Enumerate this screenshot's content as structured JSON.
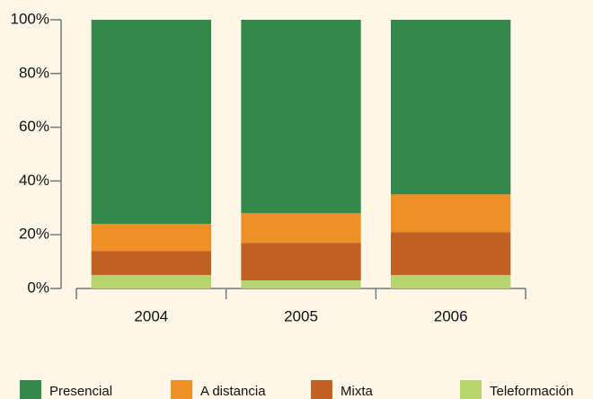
{
  "chart_data": {
    "type": "stacked_bar",
    "categories": [
      "2004",
      "2005",
      "2006"
    ],
    "series": [
      {
        "name": "Presencial",
        "color": "#33884a",
        "values": [
          76,
          72,
          65
        ]
      },
      {
        "name": "A distancia",
        "color": "#f18f27",
        "values": [
          10,
          11,
          14
        ]
      },
      {
        "name": "Mixta",
        "color": "#c06125",
        "values": [
          9,
          14,
          16
        ]
      },
      {
        "name": "Teleformación",
        "color": "#b5d56f",
        "values": [
          5,
          3,
          5
        ]
      }
    ],
    "ylim": [
      0,
      100
    ],
    "yticks": [
      {
        "value": 0,
        "label": "0%"
      },
      {
        "value": 20,
        "label": "20%"
      },
      {
        "value": 40,
        "label": "40%"
      },
      {
        "value": 60,
        "label": "60%"
      },
      {
        "value": 80,
        "label": "80%"
      },
      {
        "value": 100,
        "label": "100%"
      }
    ],
    "legend": "bottom"
  }
}
